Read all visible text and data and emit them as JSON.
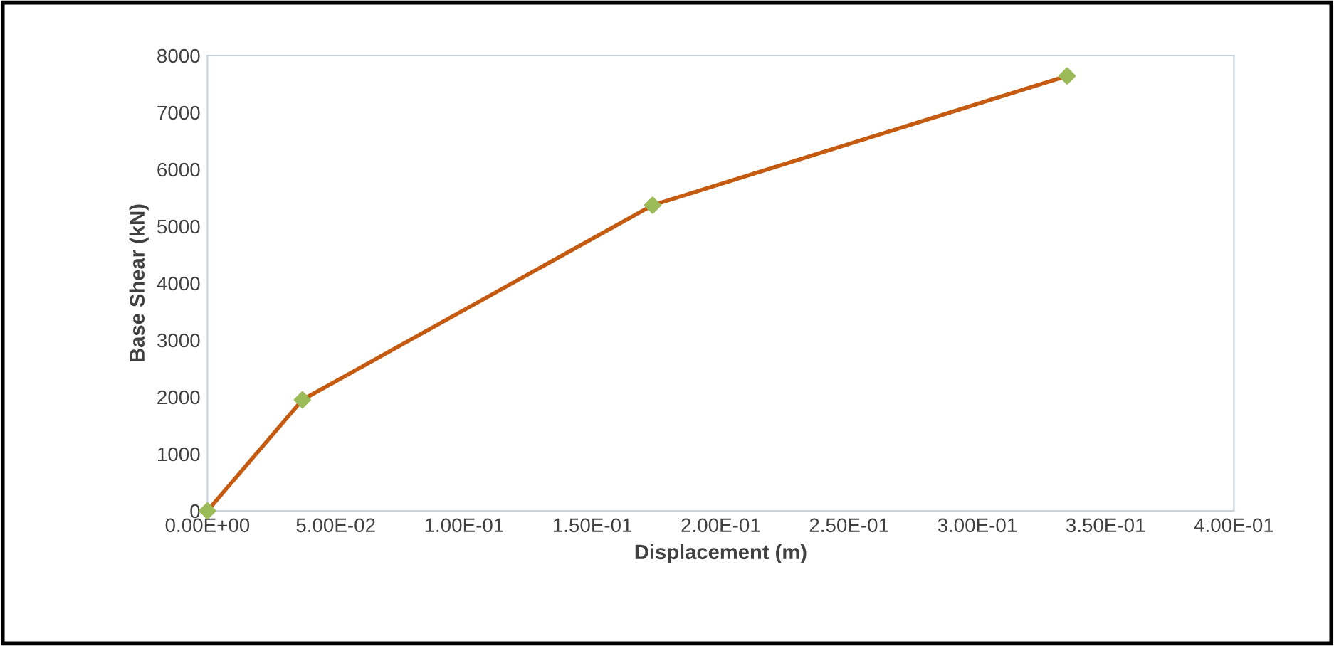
{
  "chart_data": {
    "type": "line",
    "xlabel": "Displacement (m)",
    "ylabel": "Base Shear (kN)",
    "x": [
      0,
      0.037,
      0.1735,
      0.335
    ],
    "series": [
      {
        "color": "#c55a11",
        "colors": [
          "#9bbb59",
          "#9bbb59",
          "#9bbb59",
          "#9bbb59"
        ],
        "values": [
          0,
          1950,
          5370,
          7640
        ]
      }
    ],
    "marker": "diamond",
    "line_style": "solid",
    "grid": false,
    "legend": false,
    "xlim": [
      0,
      0.4
    ],
    "ylim": [
      0,
      8000
    ],
    "xticks": [
      {
        "value": 0,
        "label": "0.00E+00"
      },
      {
        "value": 0.05,
        "label": "5.00E-02"
      },
      {
        "value": 0.1,
        "label": "1.00E-01"
      },
      {
        "value": 0.15,
        "label": "1.50E-01"
      },
      {
        "value": 0.2,
        "label": "2.00E-01"
      },
      {
        "value": 0.25,
        "label": "2.50E-01"
      },
      {
        "value": 0.3,
        "label": "3.00E-01"
      },
      {
        "value": 0.35,
        "label": "3.50E-01"
      },
      {
        "value": 0.4,
        "label": "4.00E-01"
      }
    ],
    "yticks": [
      0,
      1000,
      2000,
      3000,
      4000,
      5000,
      6000,
      7000,
      8000
    ]
  }
}
